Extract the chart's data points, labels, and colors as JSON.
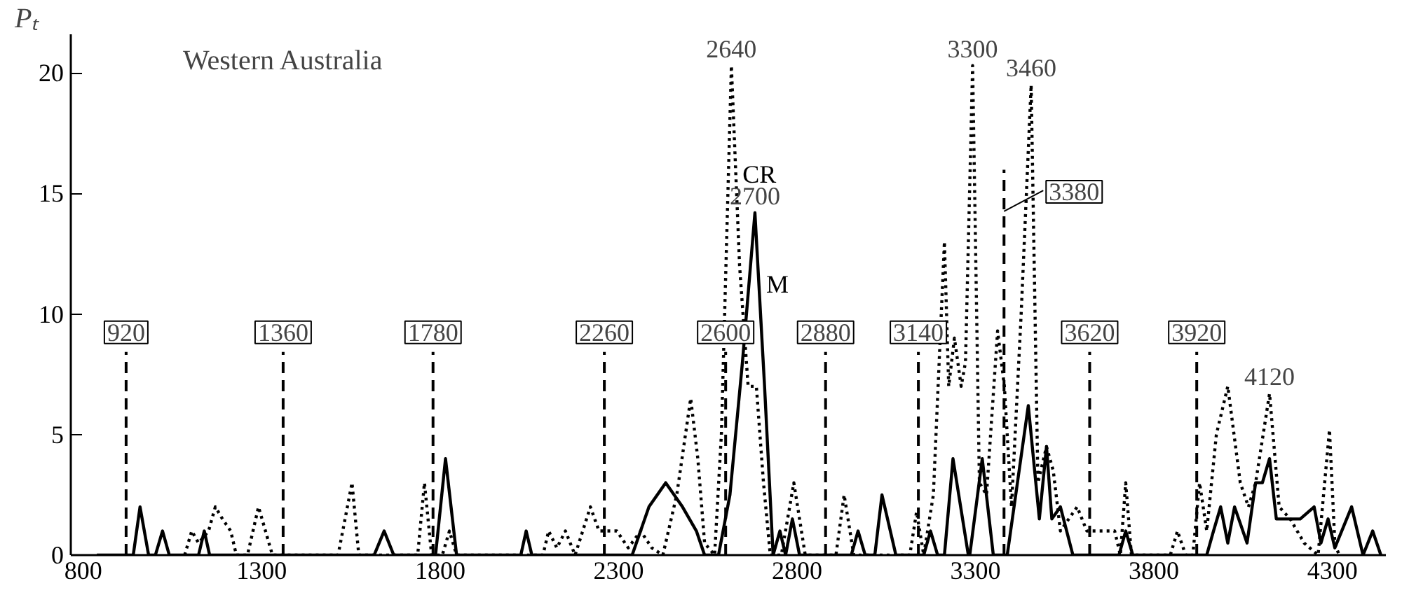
{
  "chart_data": {
    "type": "line",
    "title": "Western Australia",
    "ylabel": "Pₜ",
    "xlim": [
      765,
      4450
    ],
    "ylim": [
      0,
      21.6
    ],
    "xticks": [
      800,
      1300,
      1800,
      2300,
      2800,
      3300,
      3800,
      4300
    ],
    "yticks": [
      0,
      5,
      10,
      15,
      20
    ],
    "grid": false,
    "marker": "none",
    "series": [
      {
        "name": "M",
        "color": "#000000",
        "line_style": "solid",
        "x": [
          838,
          940,
          959,
          983,
          1002,
          1022,
          1041,
          1123,
          1139,
          1154,
          1615,
          1643,
          1670,
          1787,
          1815,
          1846,
          2026,
          2041,
          2057,
          2338,
          2385,
          2432,
          2479,
          2518,
          2541,
          2580,
          2612,
          2647,
          2682,
          2709,
          2733,
          2752,
          2768,
          2787,
          2807,
          2952,
          2971,
          2991,
          3018,
          3038,
          3077,
          3155,
          3174,
          3194,
          3213,
          3237,
          3280,
          3284,
          3319,
          3350,
          3389,
          3448,
          3479,
          3499,
          3514,
          3538,
          3573,
          3702,
          3721,
          3741,
          3948,
          3967,
          3987,
          4007,
          4026,
          4061,
          4085,
          4104,
          4124,
          4143,
          4163,
          4210,
          4249,
          4268,
          4288,
          4307,
          4354,
          4386,
          4413,
          4436
        ],
        "values": [
          0,
          0,
          2.0,
          0,
          0,
          1.0,
          0,
          0,
          1.0,
          0,
          0,
          1.0,
          0,
          0,
          4.0,
          0,
          0,
          1.0,
          0,
          0,
          2.0,
          3.0,
          2.0,
          1.0,
          0,
          0,
          2.5,
          8.0,
          14.2,
          7.0,
          0,
          1.0,
          0,
          1.5,
          0,
          0,
          1.0,
          0,
          0,
          2.5,
          0,
          0,
          1.0,
          0,
          0,
          4.0,
          0,
          0,
          4.0,
          0,
          0,
          6.2,
          1.5,
          4.5,
          1.5,
          2.0,
          0,
          0,
          1.0,
          0,
          0,
          1.0,
          2.0,
          0.5,
          2.0,
          0.5,
          3.0,
          3.0,
          4.0,
          1.5,
          1.5,
          1.5,
          2.0,
          0.5,
          1.5,
          0.3,
          2.0,
          0,
          1.0,
          0
        ]
      },
      {
        "name": "CR",
        "color": "#000000",
        "line_style": "dotted",
        "x": [
          1084,
          1104,
          1123,
          1151,
          1170,
          1190,
          1213,
          1229,
          1260,
          1291,
          1330,
          1514,
          1553,
          1572,
          1737,
          1756,
          1776,
          1806,
          1826,
          1846,
          2088,
          2104,
          2127,
          2151,
          2178,
          2221,
          2245,
          2268,
          2295,
          2327,
          2362,
          2393,
          2424,
          2463,
          2502,
          2522,
          2541,
          2569,
          2588,
          2616,
          2639,
          2663,
          2686,
          2706,
          2725,
          2756,
          2791,
          2823,
          2909,
          2932,
          2959,
          3116,
          3135,
          3155,
          3182,
          3213,
          3225,
          3241,
          3260,
          3272,
          3292,
          3311,
          3331,
          3362,
          3381,
          3401,
          3428,
          3456,
          3475,
          3499,
          3518,
          3538,
          3585,
          3612,
          3690,
          3706,
          3721,
          3737,
          3846,
          3866,
          3889,
          3909,
          3928,
          3948,
          3975,
          4007,
          4042,
          4065,
          4085,
          4124,
          4151,
          4182,
          4221,
          4260,
          4292,
          4307,
          4319
        ],
        "values": [
          0,
          1.0,
          0.5,
          1.0,
          2.0,
          1.5,
          1.0,
          0,
          0,
          2.0,
          0,
          0,
          3.0,
          0,
          0,
          3.0,
          0,
          0,
          1.0,
          0,
          0,
          1.0,
          0.3,
          1.0,
          0,
          2.0,
          1.0,
          1.0,
          1.0,
          0.3,
          1.0,
          0.3,
          0,
          2.5,
          6.5,
          4.0,
          0.5,
          0,
          5.0,
          20.3,
          12.0,
          7.0,
          7.0,
          3.0,
          0,
          0,
          3.0,
          0,
          0,
          2.5,
          0,
          0,
          1.8,
          0,
          2.5,
          13.0,
          7.0,
          9.0,
          7.0,
          8.0,
          20.3,
          3.0,
          2.5,
          9.3,
          7.0,
          2.0,
          10.0,
          19.5,
          3.0,
          4.5,
          3.5,
          1.0,
          2.0,
          1.0,
          1.0,
          0,
          3.0,
          0,
          0,
          1.0,
          0,
          0,
          3.0,
          1.0,
          5.0,
          7.0,
          3.0,
          2.0,
          3.0,
          6.7,
          2.0,
          1.5,
          0.5,
          0,
          5.2,
          0.5,
          0
        ]
      }
    ],
    "ref_lines": [
      {
        "axis": "x",
        "value": 920,
        "label": "920",
        "line_style": "dashed"
      },
      {
        "axis": "x",
        "value": 1360,
        "label": "1360",
        "line_style": "dashed"
      },
      {
        "axis": "x",
        "value": 1780,
        "label": "1780",
        "line_style": "dashed"
      },
      {
        "axis": "x",
        "value": 2260,
        "label": "2260",
        "line_style": "dashed"
      },
      {
        "axis": "x",
        "value": 2600,
        "label": "2600",
        "line_style": "dashed"
      },
      {
        "axis": "x",
        "value": 2880,
        "label": "2880",
        "line_style": "dashed"
      },
      {
        "axis": "x",
        "value": 3140,
        "label": "3140",
        "line_style": "dashed"
      },
      {
        "axis": "x",
        "value": 3380,
        "label": "3380",
        "line_style": "dashed"
      },
      {
        "axis": "x",
        "value": 3620,
        "label": "3620",
        "line_style": "dashed"
      },
      {
        "axis": "x",
        "value": 3920,
        "label": "3920",
        "line_style": "dashed"
      }
    ],
    "annotations": [
      {
        "text": "2640",
        "x": 2616,
        "y": 20.3
      },
      {
        "text": "2700",
        "x": 2682,
        "y": 14.2
      },
      {
        "text": "3300",
        "x": 3292,
        "y": 20.3
      },
      {
        "text": "3460",
        "x": 3456,
        "y": 19.5
      },
      {
        "text": "4120",
        "x": 4124,
        "y": 6.7
      }
    ]
  }
}
